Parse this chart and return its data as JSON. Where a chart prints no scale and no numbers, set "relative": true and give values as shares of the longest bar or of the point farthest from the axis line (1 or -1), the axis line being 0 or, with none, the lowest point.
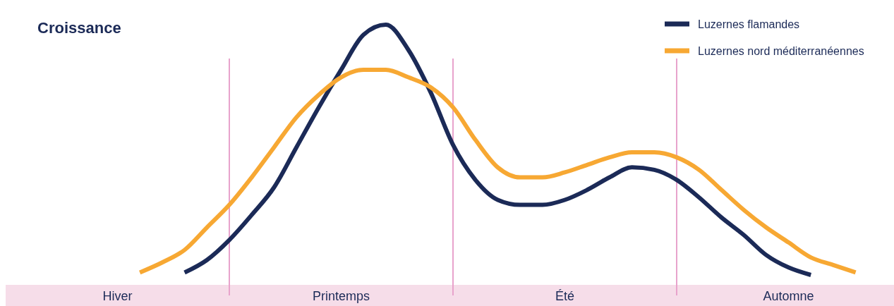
{
  "chart_data": {
    "type": "line",
    "title": "Croissance",
    "relative": true,
    "categories": [
      null,
      null,
      null,
      null,
      null,
      "Hiver",
      null,
      null,
      null,
      null,
      null,
      null,
      null,
      null,
      null,
      "Printemps",
      null,
      null,
      null,
      null,
      null,
      null,
      null,
      null,
      null,
      "Été",
      null,
      null,
      null,
      null,
      null,
      null,
      null,
      null,
      null,
      "Automne",
      null,
      null,
      null,
      null
    ],
    "legend": "top right",
    "grid": "x",
    "marker": "none",
    "line_style": "solid",
    "series": [
      {
        "name": "Luzernes flamandes",
        "color": "#1b2a57",
        "values": [
          null,
          null,
          null,
          null,
          null,
          null,
          null,
          null,
          0.01,
          0.06,
          0.14,
          0.24,
          0.35,
          0.51,
          0.67,
          0.82,
          0.96,
          1.0,
          0.9,
          0.73,
          0.52,
          0.38,
          0.3,
          0.28,
          0.28,
          0.3,
          0.34,
          0.39,
          0.43,
          0.42,
          0.38,
          0.31,
          0.23,
          0.16,
          0.08,
          0.03,
          0.0,
          null,
          null,
          null
        ]
      },
      {
        "name": "Luzernes nord méditerranéennes",
        "color": "#f7a833",
        "values": [
          null,
          null,
          null,
          null,
          null,
          null,
          0.01,
          0.05,
          0.1,
          0.19,
          0.28,
          0.39,
          0.51,
          0.63,
          0.72,
          0.79,
          0.82,
          0.82,
          0.79,
          0.75,
          0.67,
          0.54,
          0.43,
          0.39,
          0.39,
          0.41,
          0.44,
          0.47,
          0.49,
          0.49,
          0.47,
          0.42,
          0.34,
          0.26,
          0.19,
          0.13,
          0.07,
          0.04,
          0.01,
          null
        ]
      }
    ]
  }
}
